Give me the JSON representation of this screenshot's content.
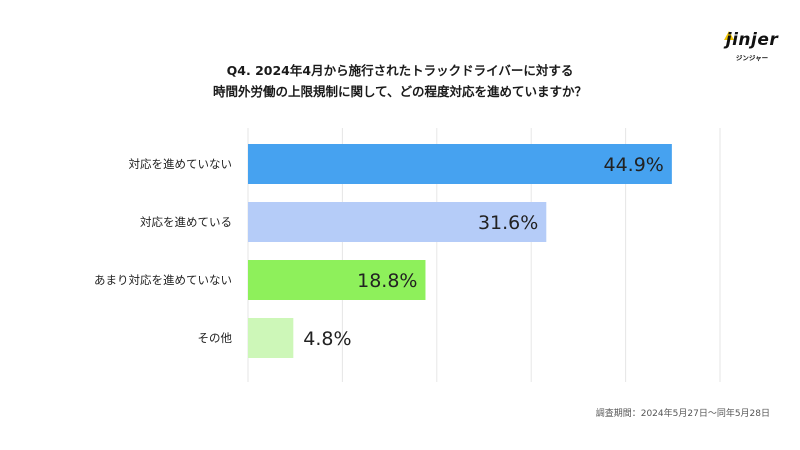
{
  "header": {
    "title_line1": "Q4. 2024年4月から施行されたトラックドライバーに対する",
    "title_line2": "時間外労働の上限規制に関して、どの程度対応を進めていますか？"
  },
  "logo": {
    "word": "jinjer",
    "sub": "ジンジャー",
    "color": "#f2c500"
  },
  "footnote": "調査期間：2024年5月27日〜同年5月28日",
  "chart_data": {
    "type": "bar",
    "orientation": "horizontal",
    "categories": [
      "対応を進めていない",
      "対応を進めている",
      "あまり対応を進めていない",
      "その他"
    ],
    "values": [
      44.9,
      31.6,
      18.8,
      4.8
    ],
    "value_labels": [
      "44.9%",
      "31.6%",
      "18.8%",
      "4.8%"
    ],
    "colors": [
      "#46a2f0",
      "#b5ccf8",
      "#8ef05b",
      "#cdf7b8"
    ],
    "xlim": [
      0,
      50
    ],
    "grid": true,
    "legend": "none",
    "title": "",
    "xlabel": "",
    "ylabel": ""
  }
}
